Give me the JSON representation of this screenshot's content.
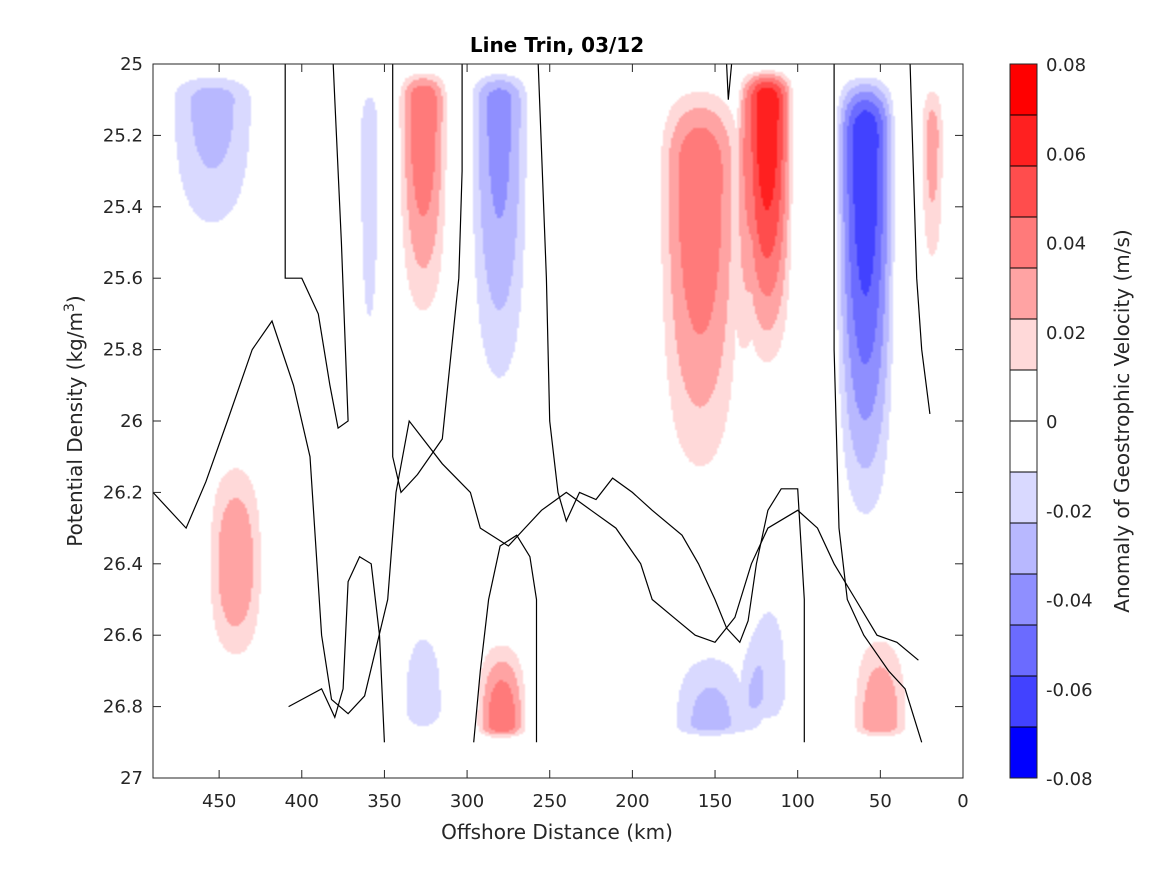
{
  "chart_data": {
    "type": "contour",
    "title": "Line Trin, 03/12",
    "xlabel": "Offshore Distance (km)",
    "ylabel_text": "Potential Density (kg/m",
    "ylabel_exp": "3",
    "ylabel_close": ")",
    "xlim": [
      490,
      0
    ],
    "x_reversed": true,
    "ylim": [
      25,
      27
    ],
    "y_reversed": true,
    "xticks": [
      450,
      400,
      350,
      300,
      250,
      200,
      150,
      100,
      50,
      0
    ],
    "yticks": [
      25,
      25.2,
      25.4,
      25.6,
      25.8,
      26,
      26.2,
      26.4,
      26.6,
      26.8,
      27
    ],
    "data_max_density": 26.9,
    "colorbar": {
      "label": "Anomaly of Geostrophic Velocity (m/s)",
      "range": [
        -0.08,
        0.08
      ],
      "levels": 16,
      "tick_values": [
        0.08,
        0.06,
        0.04,
        0.02,
        0,
        -0.02,
        -0.04,
        -0.06,
        -0.08
      ],
      "tick_labels": [
        "0.08",
        "0.06",
        "0.04",
        "0.02",
        "0",
        "-0.02",
        "-0.04",
        "-0.06",
        "-0.08"
      ],
      "colors_top_to_bottom": [
        "#ff0000",
        "#ff2020",
        "#ff4d4d",
        "#ff7a7a",
        "#ffa3a3",
        "#ffd9d9",
        "#ffffff",
        "#ffffff",
        "#d9d9ff",
        "#b8b8ff",
        "#8f8fff",
        "#6b6bff",
        "#4242ff",
        "#0000ff"
      ]
    },
    "features": [
      {
        "sign": "negative",
        "x_range": [
          490,
          418
        ],
        "y_range": [
          25,
          25.66
        ],
        "peak": -0.035,
        "peak_x": 440,
        "peak_y": 25.1
      },
      {
        "sign": "positive",
        "x_range": [
          412,
          390
        ],
        "y_range": [
          25,
          25.3
        ],
        "peak": 0.015,
        "peak_x": 400,
        "peak_y": 25.1
      },
      {
        "sign": "negative",
        "x_range": [
          368,
          350
        ],
        "y_range": [
          25,
          26.15
        ],
        "peak": -0.03,
        "peak_x": 360,
        "peak_y": 25.2
      },
      {
        "sign": "positive",
        "x_range": [
          345,
          308
        ],
        "y_range": [
          25,
          25.9
        ],
        "peak": 0.05,
        "peak_x": 325,
        "peak_y": 25.1
      },
      {
        "sign": "negative",
        "x_range": [
          303,
          258
        ],
        "y_range": [
          25,
          26.2
        ],
        "peak": -0.045,
        "peak_x": 280,
        "peak_y": 25.1
      },
      {
        "sign": "positive",
        "x_range": [
          240,
          205
        ],
        "y_range": [
          25,
          25.95
        ],
        "peak": 0.015,
        "peak_x": 222,
        "peak_y": 25.3
      },
      {
        "sign": "positive",
        "x_range": [
          190,
          128
        ],
        "y_range": [
          25,
          26.42
        ],
        "peak": 0.05,
        "peak_x": 165,
        "peak_y": 25.3
      },
      {
        "sign": "positive",
        "x_range": [
          137,
          100
        ],
        "y_range": [
          25,
          26.0
        ],
        "peak": 0.07,
        "peak_x": 118,
        "peak_y": 25.1
      },
      {
        "sign": "negative",
        "x_range": [
          80,
          38
        ],
        "y_range": [
          25,
          26.5
        ],
        "peak": -0.07,
        "peak_x": 52,
        "peak_y": 25.2
      },
      {
        "sign": "positive",
        "x_range": [
          28,
          9
        ],
        "y_range": [
          25,
          25.75
        ],
        "peak": 0.035,
        "peak_x": 16,
        "peak_y": 25.2
      },
      {
        "sign": "positive",
        "x_range": [
          462,
          418
        ],
        "y_range": [
          26.0,
          26.78
        ],
        "peak": 0.04,
        "peak_x": 432,
        "peak_y": 26.4
      },
      {
        "sign": "negative",
        "x_range": [
          398,
          378
        ],
        "y_range": [
          26.2,
          26.62
        ],
        "peak": -0.015,
        "peak_x": 390,
        "peak_y": 26.4
      },
      {
        "sign": "positive",
        "x_range": [
          368,
          352
        ],
        "y_range": [
          26.6,
          26.9
        ],
        "peak": 0.015,
        "peak_x": 360,
        "peak_y": 26.8
      },
      {
        "sign": "negative",
        "x_range": [
          345,
          308
        ],
        "y_range": [
          26.45,
          26.9
        ],
        "peak": -0.03,
        "peak_x": 325,
        "peak_y": 26.8
      },
      {
        "sign": "positive",
        "x_range": [
          298,
          260
        ],
        "y_range": [
          26.55,
          26.9
        ],
        "peak": 0.05,
        "peak_x": 280,
        "peak_y": 26.85
      },
      {
        "sign": "negative",
        "x_range": [
          185,
          120
        ],
        "y_range": [
          26.55,
          26.9
        ],
        "peak": -0.035,
        "peak_x": 155,
        "peak_y": 26.85
      },
      {
        "sign": "negative",
        "x_range": [
          135,
          100
        ],
        "y_range": [
          26.35,
          26.9
        ],
        "peak": -0.03,
        "peak_x": 118,
        "peak_y": 26.75
      },
      {
        "sign": "positive",
        "x_range": [
          72,
          28
        ],
        "y_range": [
          26.5,
          26.9
        ],
        "peak": 0.04,
        "peak_x": 52,
        "peak_y": 26.85
      },
      {
        "sign": "positive",
        "x_range": [
          490,
          480
        ],
        "y_range": [
          26.88,
          26.9
        ],
        "peak": 0.012,
        "peak_x": 485,
        "peak_y": 26.9
      }
    ],
    "zero_contours": [
      [
        [
          490,
          26.2
        ],
        [
          470,
          26.3
        ],
        [
          458,
          26.17
        ],
        [
          445,
          26.0
        ],
        [
          430,
          25.8
        ],
        [
          418,
          25.72
        ],
        [
          405,
          25.9
        ],
        [
          395,
          26.1
        ],
        [
          388,
          26.6
        ],
        [
          382,
          26.78
        ],
        [
          372,
          26.82
        ],
        [
          362,
          26.77
        ],
        [
          348,
          26.5
        ],
        [
          343,
          26.2
        ],
        [
          335,
          26.0
        ],
        [
          315,
          26.12
        ],
        [
          298,
          26.2
        ],
        [
          292,
          26.3
        ],
        [
          275,
          26.35
        ],
        [
          265,
          26.3
        ],
        [
          255,
          26.25
        ],
        [
          240,
          26.2
        ],
        [
          225,
          26.25
        ],
        [
          210,
          26.3
        ],
        [
          195,
          26.4
        ],
        [
          188,
          26.5
        ],
        [
          175,
          26.55
        ],
        [
          162,
          26.6
        ],
        [
          150,
          26.62
        ],
        [
          138,
          26.55
        ],
        [
          128,
          26.4
        ],
        [
          118,
          26.3
        ],
        [
          100,
          26.25
        ],
        [
          88,
          26.3
        ],
        [
          78,
          26.4
        ],
        [
          65,
          26.5
        ],
        [
          52,
          26.6
        ],
        [
          40,
          26.62
        ],
        [
          27,
          26.67
        ]
      ],
      [
        [
          410,
          25
        ],
        [
          410,
          25.6
        ],
        [
          400,
          25.6
        ],
        [
          390,
          25.7
        ],
        [
          383,
          25.9
        ],
        [
          378,
          26.02
        ],
        [
          372,
          26.0
        ],
        [
          376,
          25.5
        ],
        [
          380,
          25.1
        ],
        [
          381,
          25
        ]
      ],
      [
        [
          345,
          25
        ],
        [
          345,
          26.1
        ],
        [
          340,
          26.2
        ],
        [
          330,
          26.15
        ],
        [
          315,
          26.05
        ],
        [
          305,
          25.6
        ],
        [
          303,
          25.3
        ],
        [
          303,
          25
        ]
      ],
      [
        [
          257,
          25
        ],
        [
          252,
          25.6
        ],
        [
          250,
          26.0
        ],
        [
          245,
          26.2
        ],
        [
          240,
          26.28
        ],
        [
          232,
          26.2
        ],
        [
          222,
          26.22
        ],
        [
          212,
          26.16
        ],
        [
          200,
          26.2
        ],
        [
          188,
          26.25
        ],
        [
          170,
          26.32
        ],
        [
          160,
          26.4
        ],
        [
          150,
          26.5
        ],
        [
          143,
          26.58
        ],
        [
          135,
          26.62
        ],
        [
          130,
          26.56
        ],
        [
          125,
          26.4
        ],
        [
          118,
          26.25
        ],
        [
          110,
          26.19
        ],
        [
          100,
          26.19
        ],
        [
          96,
          26.5
        ],
        [
          96,
          26.9
        ]
      ],
      [
        [
          143,
          25
        ],
        [
          142,
          25.1
        ],
        [
          140,
          25
        ]
      ],
      [
        [
          78,
          25
        ],
        [
          78,
          25.8
        ],
        [
          75,
          26.3
        ],
        [
          70,
          26.5
        ],
        [
          60,
          26.6
        ],
        [
          45,
          26.7
        ],
        [
          35,
          26.75
        ],
        [
          25,
          26.9
        ]
      ],
      [
        [
          32,
          25
        ],
        [
          30,
          25.3
        ],
        [
          28,
          25.6
        ],
        [
          25,
          25.8
        ],
        [
          20,
          25.98
        ]
      ],
      [
        [
          408,
          26.8
        ],
        [
          400,
          26.78
        ],
        [
          388,
          26.75
        ],
        [
          380,
          26.83
        ],
        [
          375,
          26.75
        ],
        [
          372,
          26.45
        ],
        [
          365,
          26.38
        ],
        [
          358,
          26.4
        ],
        [
          353,
          26.6
        ],
        [
          350,
          26.9
        ]
      ],
      [
        [
          296,
          26.9
        ],
        [
          292,
          26.7
        ],
        [
          287,
          26.5
        ],
        [
          280,
          26.35
        ],
        [
          270,
          26.32
        ],
        [
          262,
          26.38
        ],
        [
          258,
          26.5
        ],
        [
          258,
          26.9
        ]
      ]
    ]
  }
}
